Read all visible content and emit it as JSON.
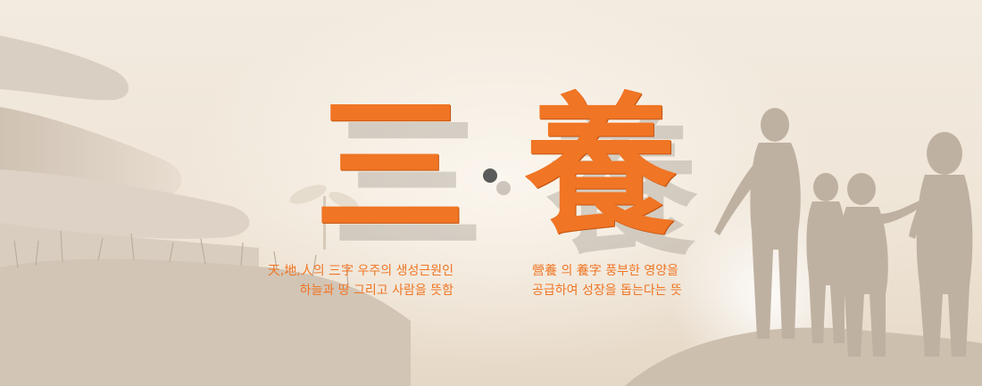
{
  "title": {
    "char_left": "三",
    "char_right": "養"
  },
  "captions": {
    "left_line1": "天,地,人의 三字  우주의 생성근원인",
    "left_line2": "하늘과 땅 그리고 사람을 뜻함",
    "right_line1": "營養 의 養字 풍부한 영양을",
    "right_line2": "공급하여 성장을 돕는다는 뜻"
  },
  "colors": {
    "accent": "#f07524",
    "background": "#f4ede2",
    "separator_dot": "#5b5b5b"
  }
}
